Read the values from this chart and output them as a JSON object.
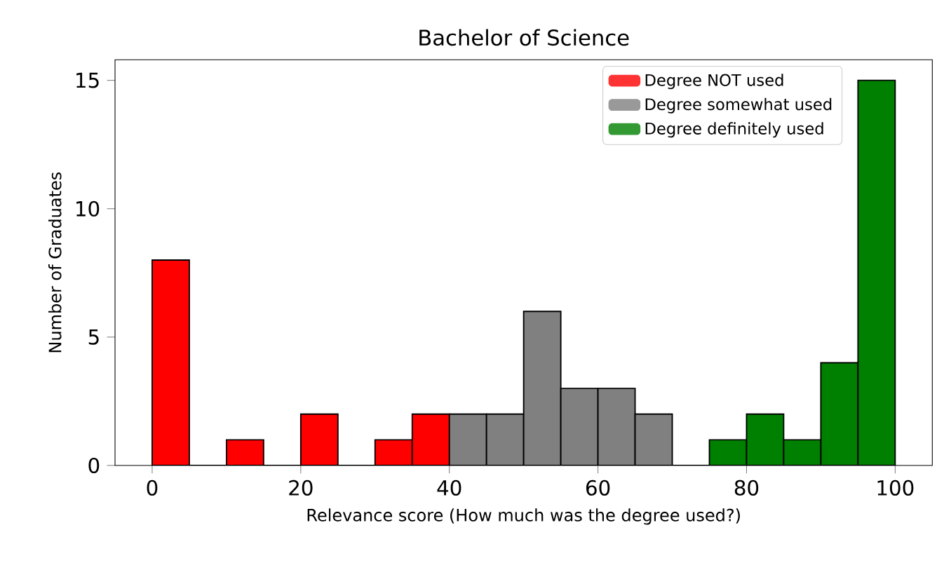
{
  "chart_data": {
    "type": "histogram",
    "title": "Bachelor of Science",
    "xlabel": "Relevance score (How much was the degree used?)",
    "ylabel": "Number of Graduates",
    "bins": [
      0,
      5,
      10,
      15,
      20,
      25,
      30,
      35,
      40,
      45,
      50,
      55,
      60,
      65,
      70,
      75,
      80,
      85,
      90,
      95,
      100
    ],
    "series": [
      {
        "name": "Degree NOT used",
        "color": "#ff0000",
        "values": [
          8,
          0,
          1,
          0,
          2,
          0,
          1,
          2,
          null,
          null,
          null,
          null,
          null,
          null,
          null,
          null,
          null,
          null,
          null,
          null
        ]
      },
      {
        "name": "Degree somewhat used",
        "color": "#808080",
        "values": [
          null,
          null,
          null,
          null,
          null,
          null,
          null,
          null,
          2,
          2,
          6,
          3,
          3,
          2,
          null,
          null,
          null,
          null,
          null,
          null
        ]
      },
      {
        "name": "Degree definitely used",
        "color": "#008000",
        "values": [
          null,
          null,
          null,
          null,
          null,
          null,
          null,
          null,
          null,
          null,
          null,
          null,
          null,
          null,
          0,
          1,
          2,
          1,
          4,
          15
        ]
      }
    ],
    "xlim": [
      -5,
      105
    ],
    "ylim": [
      0,
      15.8
    ],
    "xticks": [
      0,
      20,
      40,
      60,
      80,
      100
    ],
    "yticks": [
      0,
      5,
      10,
      15
    ],
    "legend": "top right",
    "grid": false
  }
}
